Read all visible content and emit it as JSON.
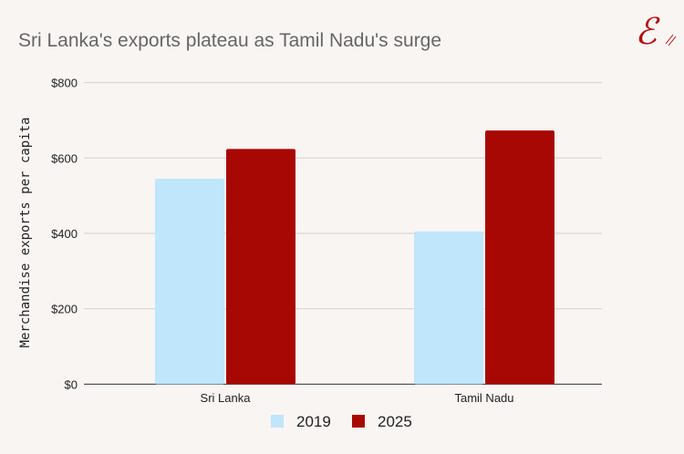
{
  "title": "Sri Lanka's exports plateau as Tamil Nadu's surge",
  "logo": "E",
  "chart_data": {
    "type": "bar",
    "title": "Sri Lanka's exports plateau as Tamil Nadu's surge",
    "xlabel": "",
    "ylabel": "Merchandise exports per capita",
    "categories": [
      "Sri Lanka",
      "Tamil Nadu"
    ],
    "series": [
      {
        "name": "2019",
        "values": [
          545,
          405
        ],
        "color": "#bfe6fa"
      },
      {
        "name": "2025",
        "values": [
          624,
          673
        ],
        "color": "#a80804"
      }
    ],
    "ylim": [
      0,
      800
    ],
    "yticks": [
      0,
      200,
      400,
      600,
      800
    ],
    "ytick_labels": [
      "$0",
      "$200",
      "$400",
      "$600",
      "$800"
    ],
    "grid": true,
    "legend": "bottom"
  }
}
